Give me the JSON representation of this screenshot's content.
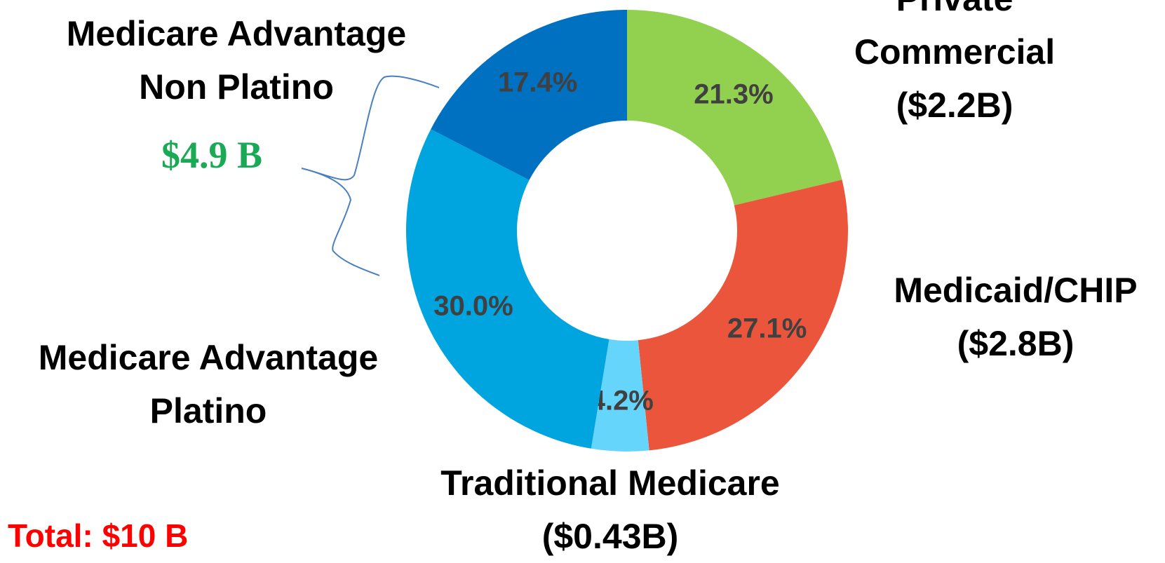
{
  "chart_data": {
    "type": "donut",
    "categories": [
      "Private Commercial",
      "Medicaid/CHIP",
      "Traditional Medicare",
      "Medicare Advantage\nPlatino",
      "Medicare Advantage\nNon Platino"
    ],
    "amounts": [
      "($2.2B)",
      "($2.8B)",
      "($0.43B)",
      null,
      null
    ],
    "values": [
      21.3,
      27.1,
      4.2,
      30.0,
      17.4
    ],
    "value_labels": [
      "21.3%",
      "27.1%",
      "4.2%",
      "30.0%",
      "17.4%"
    ],
    "colors": [
      "#92d050",
      "#ea553b",
      "#66d5fb",
      "#00a4de",
      "#0070c0"
    ],
    "annotations": [
      "$4.9 B",
      "Total: $10 B"
    ]
  }
}
